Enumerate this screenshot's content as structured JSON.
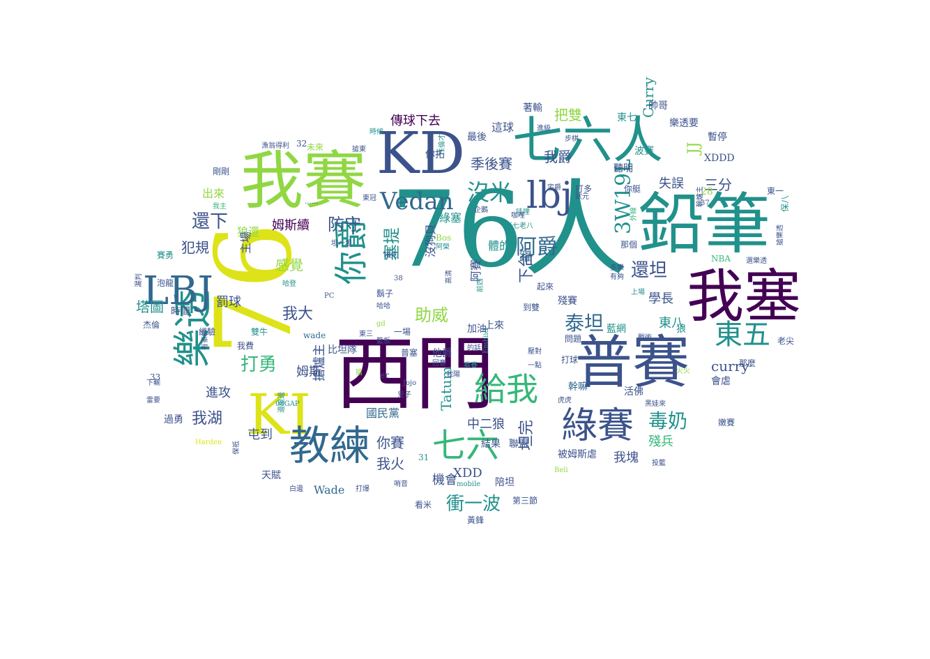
{
  "palette": {
    "dark_purple": "#440154",
    "indigo": "#3b528b",
    "blue": "#31688e",
    "teal": "#21918c",
    "green": "#35b779",
    "lime": "#90d743",
    "yellow": "#dde318"
  },
  "words": [
    {
      "text": "76人",
      "c": "teal",
      "size": 150
    },
    {
      "text": "西門",
      "c": "dark_purple",
      "size": 115
    },
    {
      "text": "76",
      "c": "yellow",
      "size": 150,
      "rot": true
    },
    {
      "text": "鉛筆",
      "c": "teal",
      "size": 95
    },
    {
      "text": "我賽",
      "c": "lime",
      "size": 90
    },
    {
      "text": "我塞",
      "c": "dark_purple",
      "size": 82
    },
    {
      "text": "普賽",
      "c": "indigo",
      "size": 82
    },
    {
      "text": "KD",
      "c": "indigo",
      "size": 82
    },
    {
      "text": "七六人",
      "c": "teal",
      "size": 72
    },
    {
      "text": "KI",
      "c": "yellow",
      "size": 80
    },
    {
      "text": "教練",
      "c": "blue",
      "size": 58
    },
    {
      "text": "樂透",
      "c": "teal",
      "size": 56,
      "rot": true
    },
    {
      "text": "綠賽",
      "c": "indigo",
      "size": 52
    },
    {
      "text": "LBJ",
      "c": "blue",
      "size": 56
    },
    {
      "text": "lbj",
      "c": "indigo",
      "size": 52
    },
    {
      "text": "七六",
      "c": "green",
      "size": 48
    },
    {
      "text": "給我",
      "c": "green",
      "size": 46
    },
    {
      "text": "你爵",
      "c": "teal",
      "size": 48,
      "rot": true
    },
    {
      "text": "東五",
      "c": "teal",
      "size": 40
    },
    {
      "text": "Vedan",
      "c": "blue",
      "size": 34
    },
    {
      "text": "沒米",
      "c": "teal",
      "size": 32
    },
    {
      "text": "阿爵",
      "c": "blue",
      "size": 30
    },
    {
      "text": "3W19L",
      "c": "teal",
      "size": 30,
      "rot": true
    },
    {
      "text": "泰坦",
      "c": "blue",
      "size": 28
    },
    {
      "text": "毒奶",
      "c": "teal",
      "size": 28
    },
    {
      "text": "還下",
      "c": "indigo",
      "size": 26
    },
    {
      "text": "還坦",
      "c": "indigo",
      "size": 26
    },
    {
      "text": "打勇",
      "c": "green",
      "size": 26
    },
    {
      "text": "助威",
      "c": "lime",
      "size": 24
    },
    {
      "text": "衝一波",
      "c": "teal",
      "size": 26
    },
    {
      "text": "塞提",
      "c": "teal",
      "size": 24,
      "rot": true
    },
    {
      "text": "防守",
      "c": "indigo",
      "size": 24
    },
    {
      "text": "我大",
      "c": "indigo",
      "size": 22
    },
    {
      "text": "我湖",
      "c": "indigo",
      "size": 22
    },
    {
      "text": "季後賽",
      "c": "indigo",
      "size": 20
    },
    {
      "text": "把雙",
      "c": "lime",
      "size": 20
    },
    {
      "text": "我爵",
      "c": "indigo",
      "size": 20
    },
    {
      "text": "三分",
      "c": "indigo",
      "size": 20
    },
    {
      "text": "坦完",
      "c": "indigo",
      "size": 22,
      "rot": true
    },
    {
      "text": "下台",
      "c": "indigo",
      "size": 22,
      "rot": true
    },
    {
      "text": "感覺",
      "c": "lime",
      "size": 20
    },
    {
      "text": "犯規",
      "c": "indigo",
      "size": 20
    },
    {
      "text": "塔圖",
      "c": "teal",
      "size": 20
    },
    {
      "text": "罰球",
      "c": "indigo",
      "size": 18
    },
    {
      "text": "學長",
      "c": "indigo",
      "size": 18
    },
    {
      "text": "東八",
      "c": "teal",
      "size": 18
    },
    {
      "text": "失誤",
      "c": "indigo",
      "size": 18
    },
    {
      "text": "姆斯續",
      "c": "dark_purple",
      "size": 18
    },
    {
      "text": "姆斯",
      "c": "indigo",
      "size": 18
    },
    {
      "text": "進攻",
      "c": "indigo",
      "size": 18
    },
    {
      "text": "傳球下去",
      "c": "dark_purple",
      "size": 18
    },
    {
      "text": "JJ",
      "c": "lime",
      "size": 22,
      "rot": true
    },
    {
      "text": "Curry",
      "c": "teal",
      "size": 20,
      "rot": true
    },
    {
      "text": "curry",
      "c": "indigo",
      "size": 20
    },
    {
      "text": "Tatum",
      "c": "teal",
      "size": 20,
      "rot": true
    },
    {
      "text": "你賽",
      "c": "indigo",
      "size": 20
    },
    {
      "text": "我火",
      "c": "indigo",
      "size": 20
    },
    {
      "text": "中二狼",
      "c": "indigo",
      "size": 18
    },
    {
      "text": "殘兵",
      "c": "green",
      "size": 18
    },
    {
      "text": "我塊",
      "c": "indigo",
      "size": 18
    },
    {
      "text": "屯到",
      "c": "indigo",
      "size": 18
    },
    {
      "text": "國民黨",
      "c": "blue",
      "size": 16
    },
    {
      "text": "搶爐主",
      "c": "indigo",
      "size": 18,
      "rot": true
    },
    {
      "text": "機會",
      "c": "indigo",
      "size": 18
    },
    {
      "text": "XDD",
      "c": "indigo",
      "size": 18
    },
    {
      "text": "Wade",
      "c": "blue",
      "size": 16
    },
    {
      "text": "沒狗貝",
      "c": "indigo",
      "size": 16,
      "rot": true
    },
    {
      "text": "阿賽",
      "c": "indigo",
      "size": 16,
      "rot": true
    },
    {
      "text": "綠塞",
      "c": "teal",
      "size": 16
    },
    {
      "text": "躍",
      "c": "blue",
      "size": 18
    },
    {
      "text": "狼還",
      "c": "lime",
      "size": 16
    },
    {
      "text": "主場",
      "c": "indigo",
      "size": 16,
      "rot": true
    },
    {
      "text": "出來",
      "c": "lime",
      "size": 16
    },
    {
      "text": "最後",
      "c": "indigo",
      "size": 14
    },
    {
      "text": "這球",
      "c": "indigo",
      "size": 16
    },
    {
      "text": "你拓",
      "c": "indigo",
      "size": 14
    },
    {
      "text": "帥哥",
      "c": "indigo",
      "size": 14
    },
    {
      "text": "樂透要",
      "c": "indigo",
      "size": 14
    },
    {
      "text": "XDDD",
      "c": "indigo",
      "size": 14
    },
    {
      "text": "28",
      "c": "lime",
      "size": 14
    },
    {
      "text": "聽明",
      "c": "indigo",
      "size": 14
    },
    {
      "text": "波賽",
      "c": "teal",
      "size": 14
    },
    {
      "text": "東七",
      "c": "teal",
      "size": 14
    },
    {
      "text": "著輸",
      "c": "indigo",
      "size": 14
    },
    {
      "text": "暫停",
      "c": "indigo",
      "size": 14
    },
    {
      "text": "體的",
      "c": "teal",
      "size": 16
    },
    {
      "text": "上來",
      "c": "indigo",
      "size": 14
    },
    {
      "text": "殘賽",
      "c": "indigo",
      "size": 14
    },
    {
      "text": "藍網",
      "c": "teal",
      "size": 14
    },
    {
      "text": "狼",
      "c": "teal",
      "size": 14
    },
    {
      "text": "活佛",
      "c": "indigo",
      "size": 14
    },
    {
      "text": "幹嘛",
      "c": "blue",
      "size": 14
    },
    {
      "text": "會虐",
      "c": "indigo",
      "size": 14
    },
    {
      "text": "那麼",
      "c": "indigo",
      "size": 12
    },
    {
      "text": "加油",
      "c": "indigo",
      "size": 14
    },
    {
      "text": "比坦隊",
      "c": "indigo",
      "size": 14
    },
    {
      "text": "他爵",
      "c": "indigo",
      "size": 14
    },
    {
      "text": "普塞",
      "c": "indigo",
      "size": 12
    },
    {
      "text": "結果",
      "c": "indigo",
      "size": 14
    },
    {
      "text": "聯盟",
      "c": "indigo",
      "size": 14
    },
    {
      "text": "被姆斯虐",
      "c": "indigo",
      "size": 14
    },
    {
      "text": "天賦",
      "c": "indigo",
      "size": 14
    },
    {
      "text": "過勇",
      "c": "indigo",
      "size": 14
    },
    {
      "text": "陪坦",
      "c": "indigo",
      "size": 14
    },
    {
      "text": "看米",
      "c": "indigo",
      "size": 12
    },
    {
      "text": "黃鋒",
      "c": "indigo",
      "size": 12
    },
    {
      "text": "第三節",
      "c": "indigo",
      "size": 12
    },
    {
      "text": "時間",
      "c": "indigo",
      "size": 14
    },
    {
      "text": "經驗",
      "c": "indigo",
      "size": 12
    },
    {
      "text": "雙牛",
      "c": "teal",
      "size": 12
    },
    {
      "text": "一場",
      "c": "indigo",
      "size": 12
    },
    {
      "text": "鬍子",
      "c": "indigo",
      "size": 12
    },
    {
      "text": "到雙",
      "c": "indigo",
      "size": 12
    },
    {
      "text": "問題",
      "c": "indigo",
      "size": 12
    },
    {
      "text": "打球",
      "c": "indigo",
      "size": 12
    },
    {
      "text": "打多",
      "c": "indigo",
      "size": 12
    },
    {
      "text": "你艇",
      "c": "indigo",
      "size": 12
    },
    {
      "text": "起來",
      "c": "indigo",
      "size": 12
    },
    {
      "text": "那個",
      "c": "indigo",
      "size": 12
    },
    {
      "text": "保八",
      "c": "teal",
      "size": 12,
      "rot": true
    },
    {
      "text": "東一",
      "c": "indigo",
      "size": 12
    },
    {
      "text": "NBA",
      "c": "green",
      "size": 12
    },
    {
      "text": "老尖",
      "c": "indigo",
      "size": 12
    },
    {
      "text": "嫩賽",
      "c": "indigo",
      "size": 12
    },
    {
      "text": "投籃",
      "c": "indigo",
      "size": 10
    },
    {
      "text": "泡龍",
      "c": "indigo",
      "size": 12
    },
    {
      "text": "賽勇",
      "c": "teal",
      "size": 12
    },
    {
      "text": "杰倫",
      "c": "indigo",
      "size": 12
    },
    {
      "text": "我費",
      "c": "indigo",
      "size": 12
    },
    {
      "text": "33",
      "c": "indigo",
      "size": 12
    },
    {
      "text": "31",
      "c": "teal",
      "size": 12
    },
    {
      "text": "32",
      "c": "indigo",
      "size": 12
    },
    {
      "text": "未來",
      "c": "lime",
      "size": 12
    },
    {
      "text": "漁翁得利",
      "c": "indigo",
      "size": 10
    },
    {
      "text": "剛剛",
      "c": "indigo",
      "size": 12
    },
    {
      "text": "時候",
      "c": "teal",
      "size": 10
    },
    {
      "text": "搶東",
      "c": "indigo",
      "size": 10
    },
    {
      "text": "進級",
      "c": "indigo",
      "size": 10
    },
    {
      "text": "步棋",
      "c": "indigo",
      "size": 10
    },
    {
      "text": "杰倫才",
      "c": "teal",
      "size": 10,
      "rot": true
    },
    {
      "text": "東冠",
      "c": "indigo",
      "size": 10
    },
    {
      "text": "企鵝",
      "c": "indigo",
      "size": 10
    },
    {
      "text": "宅爵",
      "c": "indigo",
      "size": 10
    },
    {
      "text": "狀元",
      "c": "indigo",
      "size": 10
    },
    {
      "text": "坦一坦",
      "c": "indigo",
      "size": 10
    },
    {
      "text": "領先",
      "c": "indigo",
      "size": 10
    },
    {
      "text": "阿榮",
      "c": "teal",
      "size": 10
    },
    {
      "text": "Bos",
      "c": "lime",
      "size": 12
    },
    {
      "text": "老七老八",
      "c": "teal",
      "size": 10
    },
    {
      "text": "哈登",
      "c": "teal",
      "size": 10
    },
    {
      "text": "PC",
      "c": "indigo",
      "size": 10
    },
    {
      "text": "wade",
      "c": "blue",
      "size": 12
    },
    {
      "text": "哈哈",
      "c": "indigo",
      "size": 10
    },
    {
      "text": "gd",
      "c": "lime",
      "size": 10
    },
    {
      "text": "東三",
      "c": "indigo",
      "size": 10
    },
    {
      "text": "er",
      "c": "indigo",
      "size": 12
    },
    {
      "text": "Jojo",
      "c": "indigo",
      "size": 10
    },
    {
      "text": "兒子",
      "c": "indigo",
      "size": 10
    },
    {
      "text": "mobile",
      "c": "teal",
      "size": 10
    },
    {
      "text": "哨音",
      "c": "indigo",
      "size": 10
    },
    {
      "text": "打爆",
      "c": "indigo",
      "size": 10
    },
    {
      "text": "白邊",
      "c": "indigo",
      "size": 10
    },
    {
      "text": "Harden",
      "c": "yellow",
      "size": 10
    },
    {
      "text": "保祗",
      "c": "indigo",
      "size": 10,
      "rot": true
    },
    {
      "text": "08GAP",
      "c": "teal",
      "size": 10
    },
    {
      "text": "邊坦邊",
      "c": "teal",
      "size": 10,
      "rot": true
    },
    {
      "text": "黑娃來",
      "c": "indigo",
      "size": 10
    },
    {
      "text": "火火",
      "c": "lime",
      "size": 10
    },
    {
      "text": "虎虎",
      "c": "indigo",
      "size": 10
    },
    {
      "text": "壓對",
      "c": "indigo",
      "size": 10
    },
    {
      "text": "一點",
      "c": "indigo",
      "size": 10
    },
    {
      "text": "Embiid",
      "c": "teal",
      "size": 10,
      "rot": true
    },
    {
      "text": "的話",
      "c": "indigo",
      "size": 10
    },
    {
      "text": "看賽",
      "c": "teal",
      "size": 10
    },
    {
      "text": "我陽",
      "c": "indigo",
      "size": 10
    },
    {
      "text": "有豪神",
      "c": "indigo",
      "size": 10,
      "rot": true
    },
    {
      "text": "選樂透",
      "c": "indigo",
      "size": 10
    },
    {
      "text": "搶樂透",
      "c": "indigo",
      "size": 10,
      "rot": true
    },
    {
      "text": "多樂",
      "c": "indigo",
      "size": 10
    },
    {
      "text": "有夠",
      "c": "indigo",
      "size": 10
    },
    {
      "text": "輸爐主",
      "c": "indigo",
      "size": 10,
      "rot": true
    },
    {
      "text": "上場",
      "c": "teal",
      "size": 10
    },
    {
      "text": "戰術",
      "c": "indigo",
      "size": 10
    },
    {
      "text": "Beli",
      "c": "lime",
      "size": 10
    },
    {
      "text": "37",
      "c": "indigo",
      "size": 10
    },
    {
      "text": "......",
      "c": "indigo",
      "size": 10
    },
    {
      "text": "我主",
      "c": "green",
      "size": 10
    },
    {
      "text": "哇哩",
      "c": "teal",
      "size": 10
    },
    {
      "text": "咖哩",
      "c": "indigo",
      "size": 10
    },
    {
      "text": "外線",
      "c": "green",
      "size": 10,
      "rot": true
    },
    {
      "text": "38",
      "c": "indigo",
      "size": 10
    },
    {
      "text": "高清",
      "c": "indigo",
      "size": 10,
      "rot": true
    },
    {
      "text": "籃板",
      "c": "indigo",
      "size": 10
    },
    {
      "text": "回賽",
      "c": "indigo",
      "size": 10
    },
    {
      "text": "前四",
      "c": "teal",
      "size": 10,
      "rot": true
    },
    {
      "text": "漏判",
      "c": "indigo",
      "size": 10,
      "rot": true
    },
    {
      "text": "雷要",
      "c": "indigo",
      "size": 10
    },
    {
      "text": "下輸",
      "c": "indigo",
      "size": 10
    },
    {
      "text": "搶",
      "c": "lime",
      "size": 10
    }
  ]
}
